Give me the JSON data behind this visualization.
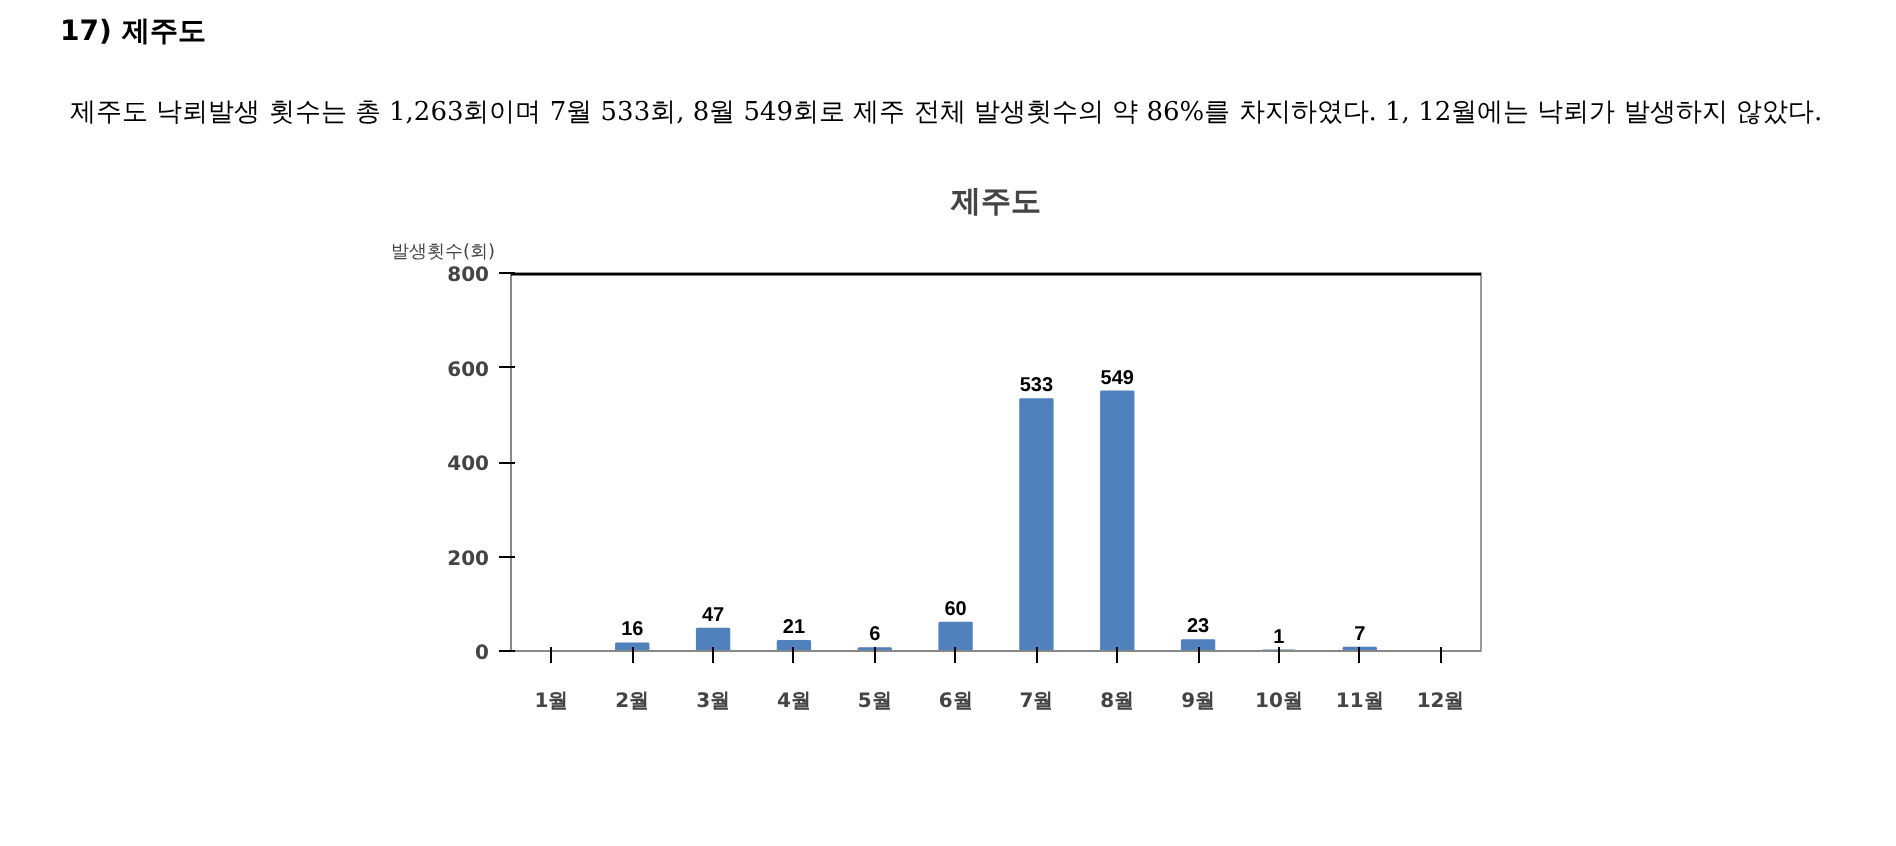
{
  "chart_data": {
    "type": "bar",
    "title": "제주도",
    "ylabel": "발생횟수(회)",
    "annotations": [
      "17) 제주도",
      "제주도 낙뢰발생 횟수는 총 1,263회이며 7월 533회, 8월 549회로 제주 전체 발생횟수의 약 86%를 차지하였다. 1, 12월에는 낙뢰가 발생하지 않았다."
    ],
    "categories": [
      "1월",
      "2월",
      "3월",
      "4월",
      "5월",
      "6월",
      "7월",
      "8월",
      "9월",
      "10월",
      "11월",
      "12월"
    ],
    "values": [
      0,
      16,
      47,
      21,
      6,
      60,
      533,
      549,
      23,
      1,
      7,
      0
    ],
    "value_labels": [
      null,
      "16",
      "47",
      "21",
      "6",
      "60",
      "533",
      "549",
      "23",
      "1",
      "7",
      null
    ],
    "color": "#4f81bd",
    "ylim": [
      0,
      800
    ],
    "yticks": [
      0,
      200,
      400,
      600,
      800
    ],
    "grid": false
  }
}
